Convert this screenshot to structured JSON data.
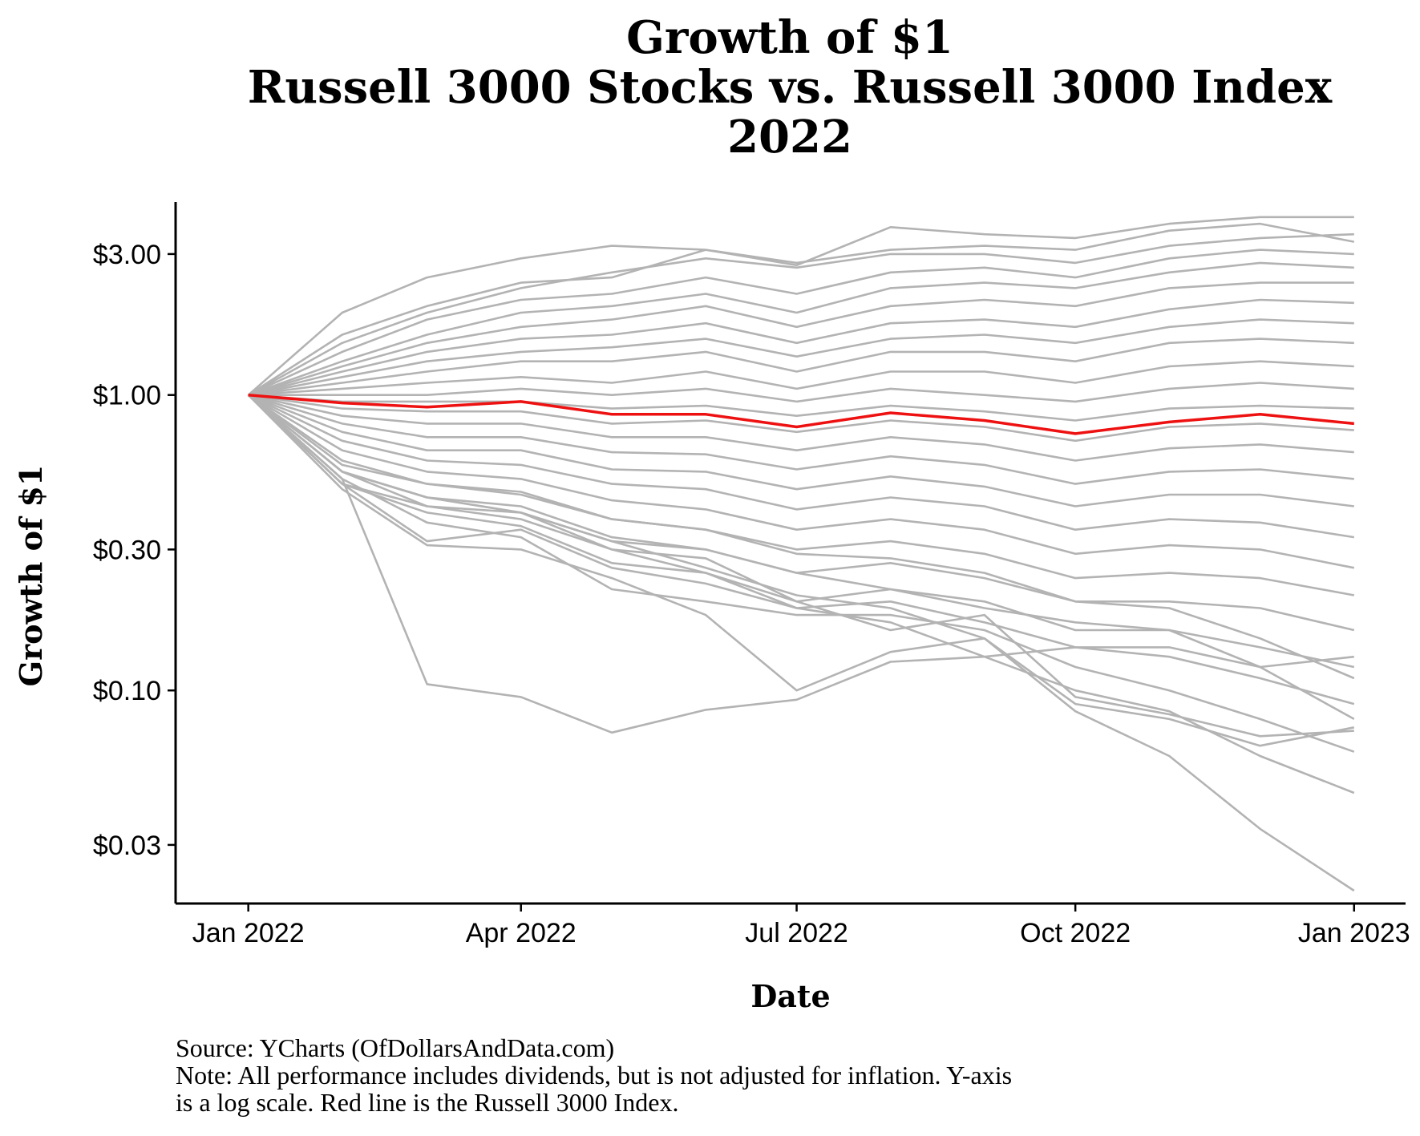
{
  "chart_data": {
    "type": "line",
    "title_lines": [
      "Growth of $1",
      "Russell 3000 Stocks vs. Russell 3000 Index",
      "2022"
    ],
    "xlabel": "Date",
    "ylabel": "Growth of $1",
    "y_scale": "log",
    "ylim": [
      0.019,
      4.5
    ],
    "xlim": [
      "2021-12-08",
      "2023-01-18"
    ],
    "x_ticks": [
      {
        "date": "2022-01-01",
        "label": "Jan 2022"
      },
      {
        "date": "2022-04-01",
        "label": "Apr 2022"
      },
      {
        "date": "2022-07-01",
        "label": "Jul 2022"
      },
      {
        "date": "2022-10-01",
        "label": "Oct 2022"
      },
      {
        "date": "2023-01-01",
        "label": "Jan 2023"
      }
    ],
    "y_ticks": [
      {
        "value": 3.0,
        "label": "$3.00"
      },
      {
        "value": 1.0,
        "label": "$1.00"
      },
      {
        "value": 0.3,
        "label": "$0.30"
      },
      {
        "value": 0.1,
        "label": "$0.10"
      },
      {
        "value": 0.03,
        "label": "$0.03"
      }
    ],
    "dates": [
      "2022-01-01",
      "2022-02-01",
      "2022-03-01",
      "2022-04-01",
      "2022-05-01",
      "2022-06-01",
      "2022-07-01",
      "2022-08-01",
      "2022-09-01",
      "2022-10-01",
      "2022-11-01",
      "2022-12-01",
      "2023-01-01"
    ],
    "index_series": {
      "name": "Russell 3000 Index",
      "color": "#ee1111",
      "values": [
        1.0,
        0.94,
        0.91,
        0.95,
        0.86,
        0.86,
        0.78,
        0.87,
        0.82,
        0.74,
        0.81,
        0.86,
        0.8
      ]
    },
    "stocks_series_color": "#b3b3b3",
    "stocks_series": [
      [
        1.0,
        1.9,
        2.5,
        2.9,
        3.2,
        3.1,
        2.75,
        3.7,
        3.5,
        3.4,
        3.8,
        4.0,
        4.0
      ],
      [
        1.0,
        1.6,
        2.0,
        2.4,
        2.5,
        3.1,
        2.8,
        3.1,
        3.2,
        3.1,
        3.6,
        3.8,
        3.3
      ],
      [
        1.0,
        1.5,
        1.9,
        2.3,
        2.6,
        2.9,
        2.7,
        3.0,
        3.0,
        2.8,
        3.2,
        3.4,
        3.5
      ],
      [
        1.0,
        1.4,
        1.8,
        2.1,
        2.2,
        2.5,
        2.2,
        2.6,
        2.7,
        2.5,
        2.9,
        3.1,
        3.0
      ],
      [
        1.0,
        1.3,
        1.6,
        1.9,
        2.0,
        2.2,
        1.9,
        2.3,
        2.4,
        2.3,
        2.6,
        2.8,
        2.7
      ],
      [
        1.0,
        1.25,
        1.5,
        1.7,
        1.8,
        2.0,
        1.7,
        2.0,
        2.1,
        2.0,
        2.3,
        2.4,
        2.4
      ],
      [
        1.0,
        1.2,
        1.4,
        1.55,
        1.6,
        1.75,
        1.5,
        1.75,
        1.8,
        1.7,
        1.95,
        2.1,
        2.05
      ],
      [
        1.0,
        1.15,
        1.3,
        1.4,
        1.45,
        1.55,
        1.35,
        1.55,
        1.6,
        1.5,
        1.7,
        1.8,
        1.75
      ],
      [
        1.0,
        1.1,
        1.2,
        1.3,
        1.3,
        1.4,
        1.2,
        1.4,
        1.4,
        1.3,
        1.5,
        1.55,
        1.5
      ],
      [
        1.0,
        1.05,
        1.1,
        1.15,
        1.1,
        1.2,
        1.05,
        1.2,
        1.2,
        1.1,
        1.25,
        1.3,
        1.25
      ],
      [
        1.0,
        1.0,
        1.0,
        1.05,
        1.0,
        1.05,
        0.95,
        1.05,
        1.0,
        0.95,
        1.05,
        1.1,
        1.05
      ],
      [
        1.0,
        0.95,
        0.95,
        0.95,
        0.9,
        0.92,
        0.85,
        0.92,
        0.88,
        0.82,
        0.9,
        0.92,
        0.9
      ],
      [
        1.0,
        0.9,
        0.88,
        0.88,
        0.8,
        0.82,
        0.75,
        0.82,
        0.78,
        0.7,
        0.78,
        0.8,
        0.76
      ],
      [
        1.0,
        0.85,
        0.8,
        0.8,
        0.72,
        0.72,
        0.65,
        0.72,
        0.68,
        0.6,
        0.66,
        0.68,
        0.64
      ],
      [
        1.0,
        0.8,
        0.72,
        0.72,
        0.64,
        0.63,
        0.56,
        0.62,
        0.58,
        0.5,
        0.55,
        0.56,
        0.52
      ],
      [
        1.0,
        0.75,
        0.65,
        0.65,
        0.56,
        0.55,
        0.48,
        0.53,
        0.49,
        0.42,
        0.46,
        0.46,
        0.42
      ],
      [
        1.0,
        0.7,
        0.6,
        0.58,
        0.5,
        0.48,
        0.41,
        0.45,
        0.42,
        0.35,
        0.38,
        0.37,
        0.33
      ],
      [
        1.0,
        0.65,
        0.55,
        0.52,
        0.44,
        0.41,
        0.35,
        0.38,
        0.35,
        0.29,
        0.31,
        0.3,
        0.26
      ],
      [
        1.0,
        0.6,
        0.5,
        0.46,
        0.38,
        0.35,
        0.3,
        0.32,
        0.29,
        0.24,
        0.25,
        0.24,
        0.21
      ],
      [
        1.0,
        0.55,
        0.45,
        0.4,
        0.32,
        0.3,
        0.25,
        0.27,
        0.24,
        0.2,
        0.2,
        0.19,
        0.16
      ],
      [
        1.0,
        0.5,
        0.4,
        0.36,
        0.27,
        0.25,
        0.2,
        0.22,
        0.2,
        0.16,
        0.16,
        0.14,
        0.12
      ],
      [
        1.0,
        0.5,
        0.32,
        0.35,
        0.26,
        0.23,
        0.19,
        0.2,
        0.17,
        0.14,
        0.13,
        0.11,
        0.09
      ],
      [
        1.0,
        0.48,
        0.31,
        0.3,
        0.24,
        0.18,
        0.1,
        0.135,
        0.15,
        0.09,
        0.08,
        0.065,
        0.075
      ],
      [
        1.0,
        0.52,
        0.37,
        0.33,
        0.22,
        0.2,
        0.18,
        0.18,
        0.16,
        0.12,
        0.1,
        0.08,
        0.062
      ],
      [
        1.0,
        0.52,
        0.105,
        0.095,
        0.072,
        0.086,
        0.093,
        0.125,
        0.13,
        0.14,
        0.14,
        0.12,
        0.13
      ],
      [
        1.0,
        0.5,
        0.42,
        0.4,
        0.3,
        0.28,
        0.2,
        0.16,
        0.18,
        0.095,
        0.083,
        0.07,
        0.073
      ],
      [
        1.0,
        0.55,
        0.45,
        0.4,
        0.32,
        0.26,
        0.21,
        0.19,
        0.15,
        0.085,
        0.06,
        0.034,
        0.021
      ],
      [
        1.0,
        0.55,
        0.42,
        0.38,
        0.3,
        0.25,
        0.19,
        0.17,
        0.13,
        0.1,
        0.085,
        0.06,
        0.045
      ],
      [
        1.0,
        0.55,
        0.45,
        0.42,
        0.33,
        0.3,
        0.25,
        0.22,
        0.19,
        0.17,
        0.16,
        0.12,
        0.08
      ],
      [
        1.0,
        0.58,
        0.5,
        0.47,
        0.38,
        0.35,
        0.29,
        0.28,
        0.25,
        0.2,
        0.19,
        0.15,
        0.11
      ]
    ],
    "caption_lines": [
      "Source:  YCharts (OfDollarsAndData.com)",
      "Note: All performance includes dividends, but is not adjusted for inflation. Y-axis",
      "is a log scale. Red line is the Russell 3000 Index."
    ]
  }
}
